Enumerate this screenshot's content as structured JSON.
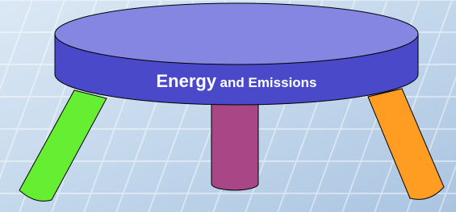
{
  "stool": {
    "label_main": "Energy",
    "label_rest": "and Emissions"
  }
}
